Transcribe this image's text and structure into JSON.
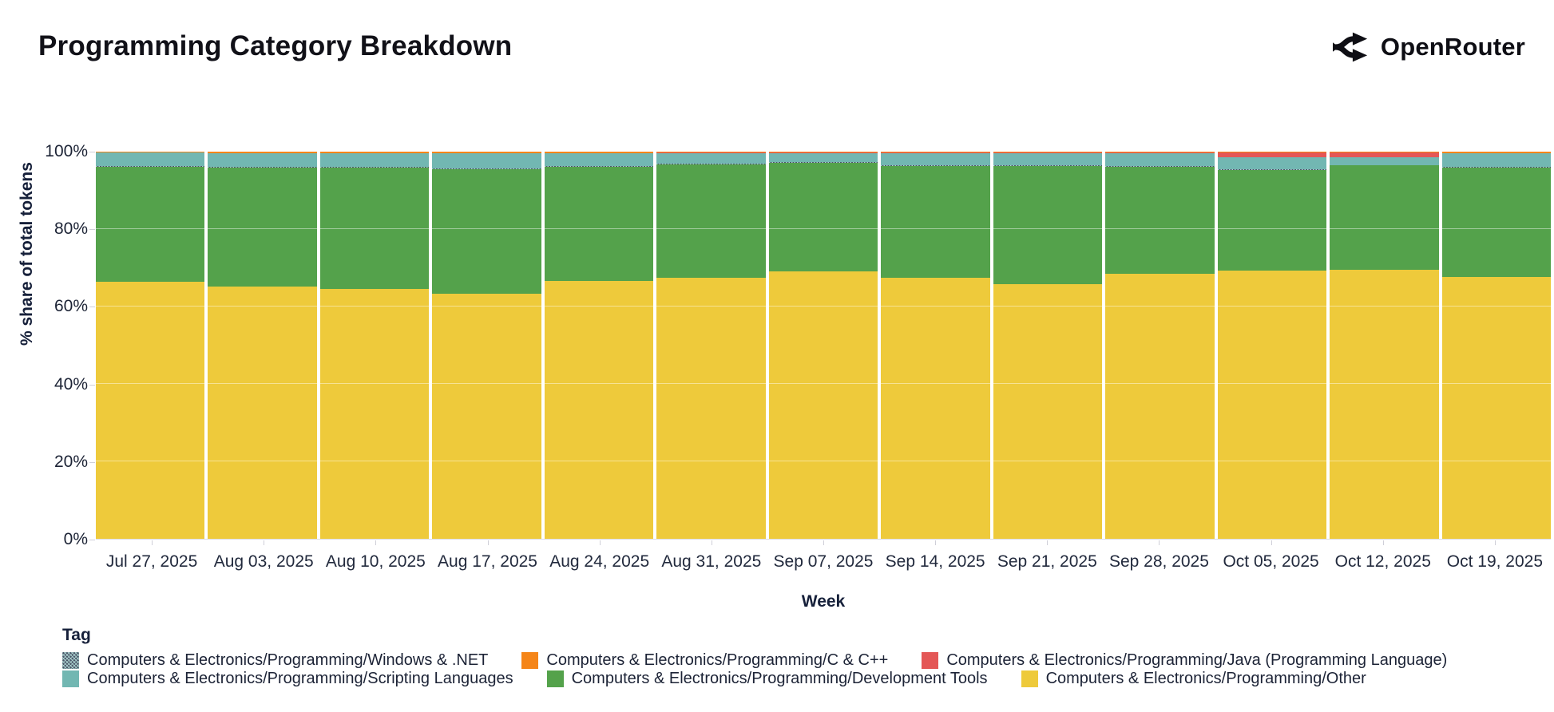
{
  "header": {
    "title": "Programming Category Breakdown",
    "brand": "OpenRouter"
  },
  "chart_data": {
    "type": "bar",
    "stacked": true,
    "normalized_100pct": true,
    "title": "Programming Category Breakdown",
    "xlabel": "Week",
    "ylabel": "% share of total tokens",
    "ylim": [
      0,
      100
    ],
    "ytick_labels": [
      "0%",
      "20%",
      "40%",
      "60%",
      "80%",
      "100%"
    ],
    "grid": true,
    "legend_title": "Tag",
    "legend_position": "bottom",
    "categories": [
      "Jul 27, 2025",
      "Aug 03, 2025",
      "Aug 10, 2025",
      "Aug 17, 2025",
      "Aug 24, 2025",
      "Aug 31, 2025",
      "Sep 07, 2025",
      "Sep 14, 2025",
      "Sep 21, 2025",
      "Sep 28, 2025",
      "Oct 05, 2025",
      "Oct 12, 2025",
      "Oct 19, 2025"
    ],
    "series": [
      {
        "key": "other",
        "name": "Computers & Electronics/Programming/Other",
        "color": "#eeca3b",
        "values": [
          66.4,
          65.2,
          64.6,
          63.3,
          66.6,
          67.4,
          69.1,
          67.4,
          65.8,
          68.4,
          69.3,
          69.5,
          67.6
        ]
      },
      {
        "key": "development-tools",
        "name": "Computers & Electronics/Programming/Development Tools",
        "color": "#54a24b",
        "values": [
          29.7,
          30.7,
          31.2,
          32.1,
          29.4,
          29.4,
          28.1,
          28.9,
          30.4,
          27.7,
          25.9,
          26.9,
          28.2
        ]
      },
      {
        "key": "windows-net",
        "name": "Computers & Electronics/Programming/Windows & .NET",
        "color": "#4a5568",
        "pattern": true,
        "values": [
          0.2,
          0.2,
          0.2,
          0.2,
          0.2,
          0.2,
          0.2,
          0.2,
          0.2,
          0.2,
          0.2,
          0.2,
          0.2
        ]
      },
      {
        "key": "scripting-languages",
        "name": "Computers & Electronics/Programming/Scripting Languages",
        "color": "#72b7b2",
        "values": [
          3.4,
          3.4,
          3.5,
          3.9,
          3.3,
          2.6,
          2.2,
          3.1,
          3.2,
          3.3,
          3.2,
          2.0,
          3.5
        ]
      },
      {
        "key": "java",
        "name": "Computers & Electronics/Programming/Java (Programming Language)",
        "color": "#e45756",
        "values": [
          0.1,
          0.1,
          0.1,
          0.1,
          0.1,
          0.1,
          0.1,
          0.1,
          0.1,
          0.1,
          1.2,
          1.2,
          0.1
        ]
      },
      {
        "key": "c-cpp",
        "name": "Computers & Electronics/Programming/C & C++",
        "color": "#f58518",
        "values": [
          0.2,
          0.4,
          0.4,
          0.4,
          0.4,
          0.3,
          0.3,
          0.3,
          0.3,
          0.3,
          0.2,
          0.2,
          0.4
        ]
      }
    ],
    "legend_rows": [
      [
        "windows-net",
        "c-cpp",
        "java"
      ],
      [
        "scripting-languages",
        "development-tools",
        "other"
      ]
    ]
  }
}
